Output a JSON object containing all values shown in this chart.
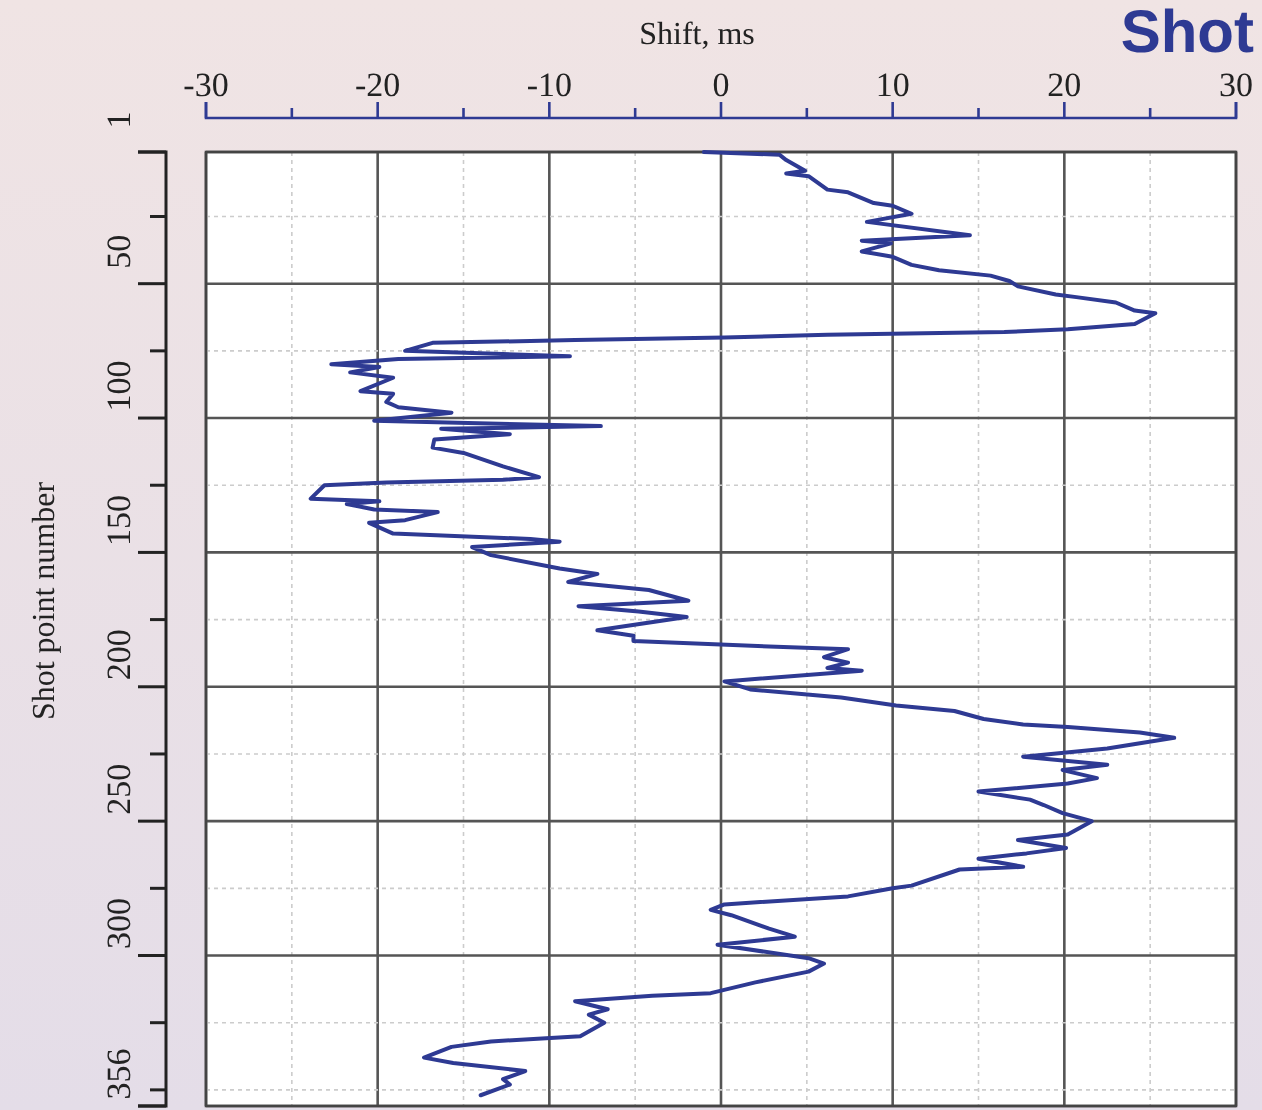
{
  "chart_data": {
    "type": "line",
    "title": "Shot",
    "xlabel": "Shift, ms",
    "ylabel": "Shot point number",
    "xlim": [
      -30,
      30
    ],
    "xticks": [
      -30,
      {
        "value": -25,
        "label": null
      },
      -20,
      {
        "value": -15,
        "label": null
      },
      -10,
      {
        "value": -5,
        "label": null
      },
      0,
      {
        "value": 5,
        "label": null
      },
      10,
      {
        "value": 15,
        "label": null
      },
      20,
      {
        "value": 25,
        "label": null
      },
      30
    ],
    "ylim": [
      356,
      1
    ],
    "yticks": [
      1,
      {
        "value": 25,
        "label": null
      },
      50,
      {
        "value": 75,
        "label": null
      },
      100,
      {
        "value": 125,
        "label": null
      },
      150,
      {
        "value": 175,
        "label": null
      },
      200,
      {
        "value": 225,
        "label": null
      },
      250,
      {
        "value": 275,
        "label": null
      },
      300,
      {
        "value": 325,
        "label": null
      },
      {
        "value": 350,
        "label": null
      },
      356
    ],
    "grid": true,
    "marker": "none",
    "line_style": "solid",
    "series": [
      {
        "color": "#2e3a93",
        "x": [
          -1,
          3.4,
          3.8,
          4.9,
          3.8,
          5.1,
          6.2,
          7.4,
          8.9,
          10,
          11.1,
          8.5,
          14.5,
          8.2,
          9.9,
          8.2,
          10,
          11.1,
          12.7,
          15.7,
          16.8,
          17.3,
          19.5,
          20.7,
          23,
          24.1,
          25.3,
          24.1,
          20.2,
          16.5,
          6.2,
          0.2,
          -8.5,
          -16.8,
          -18.4,
          -8.8,
          -18.8,
          -22.7,
          -19.9,
          -21.6,
          -19.1,
          -21,
          -19.1,
          -19.5,
          -18.8,
          -15.7,
          -20.2,
          -7,
          -16.3,
          -12.3,
          -16.7,
          -16.8,
          -15,
          -12.7,
          -10.6,
          -12.7,
          -19.5,
          -23.1,
          -23.9,
          -19.9,
          -21.8,
          -20.2,
          -16.5,
          -18.4,
          -20.5,
          -19.1,
          -11.1,
          -9.4,
          -14.5,
          -13.4,
          -9.4,
          -7.2,
          -8.9,
          -4.2,
          -1.9,
          -8.3,
          -4.8,
          -2,
          -7.2,
          -5.1,
          -5.1,
          2.8,
          7.4,
          6,
          7.4,
          6.2,
          8.2,
          0.2,
          1.7,
          7,
          10.2,
          13.6,
          15.3,
          17.6,
          20.2,
          24.4,
          26.4,
          22.5,
          17.6,
          22.5,
          19.9,
          21.9,
          20.2,
          15,
          18,
          18.8,
          19.9,
          21.6,
          20.2,
          17.3,
          20.1,
          17.8,
          15,
          17.6,
          13.9,
          11.1,
          10,
          7.4,
          0.2,
          -0.6,
          0.6,
          2.8,
          4.3,
          -0.2,
          5.1,
          6,
          5.1,
          2,
          -0.6,
          -4,
          -8.5,
          -6.6,
          -7.7,
          -6.8,
          -8.2,
          -13.4,
          -15.7,
          -17.3,
          -15.6,
          -11.4,
          -12.7,
          -12.3,
          -14
        ],
        "values": [
          1,
          2,
          4,
          8,
          9,
          10,
          15,
          16,
          20,
          21,
          24,
          27,
          32,
          34,
          35,
          38,
          40,
          43,
          45,
          47,
          49,
          51,
          54,
          55,
          57,
          60,
          61,
          65,
          67,
          68,
          69,
          70,
          71,
          72,
          75,
          77,
          78,
          80,
          81,
          83,
          85,
          90,
          91,
          94,
          96,
          98,
          101,
          103,
          104,
          106,
          108,
          111,
          113,
          118,
          122,
          123,
          124,
          125,
          130,
          131,
          132,
          134,
          135,
          138,
          139,
          143,
          145,
          146,
          148,
          151,
          156,
          158,
          161,
          164,
          168,
          170,
          172,
          174,
          179,
          181,
          183,
          185,
          186,
          189,
          191,
          193,
          194,
          198,
          201,
          204,
          207,
          209,
          212,
          214,
          215,
          217,
          219,
          223,
          226,
          229,
          231,
          234,
          236,
          239,
          242,
          244,
          247,
          250,
          255,
          257,
          260,
          262,
          264,
          267,
          268,
          274,
          275,
          278,
          281,
          283,
          285,
          290,
          293,
          296,
          301,
          303,
          306,
          310,
          314,
          315,
          317,
          320,
          322,
          325,
          330,
          332,
          334,
          338,
          340,
          343,
          346,
          348,
          352
        ]
      }
    ]
  }
}
